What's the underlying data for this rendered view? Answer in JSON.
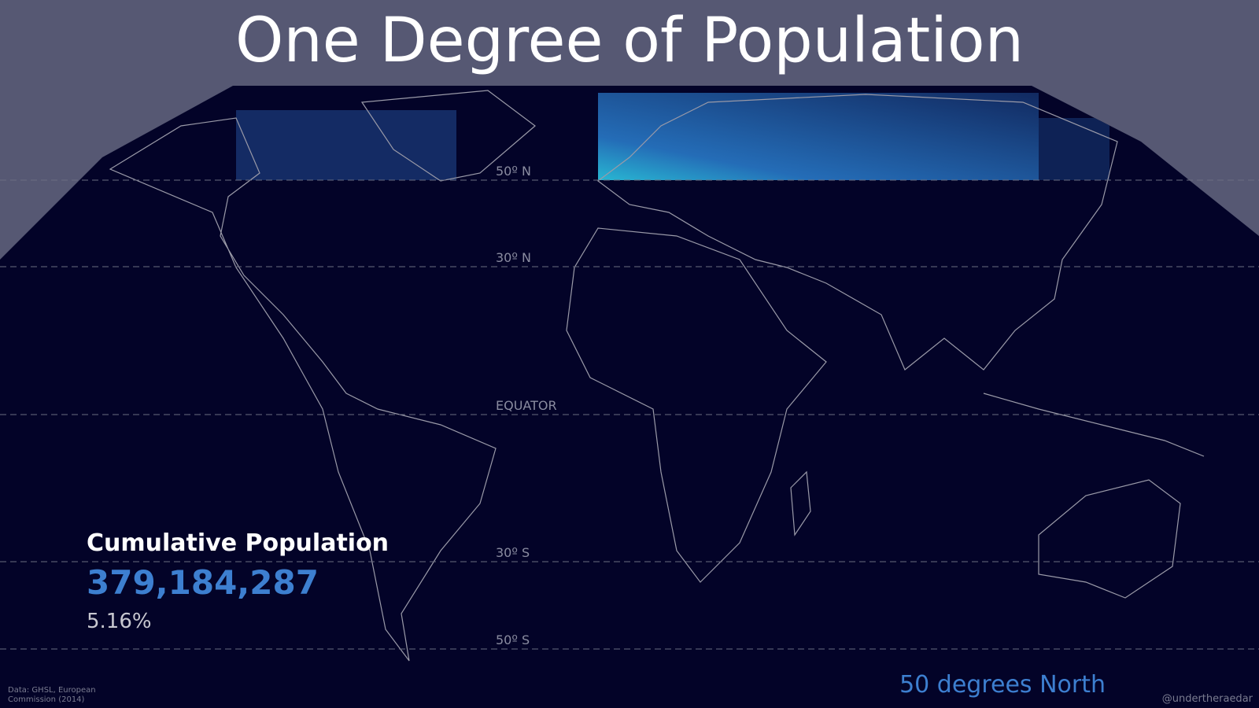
{
  "title": "One Degree of Population",
  "latitude_labels": [
    "50º N",
    "30º N",
    "EQUATOR",
    "30º S",
    "50º S"
  ],
  "cumulative": {
    "label": "Cumulative Population",
    "population": "379,184,287",
    "percent": "5.16%"
  },
  "current_latitude": "50 degrees North",
  "source": [
    "Data: GHSL, European",
    "Commission (2014)"
  ],
  "credit": "@undertheraedar"
}
